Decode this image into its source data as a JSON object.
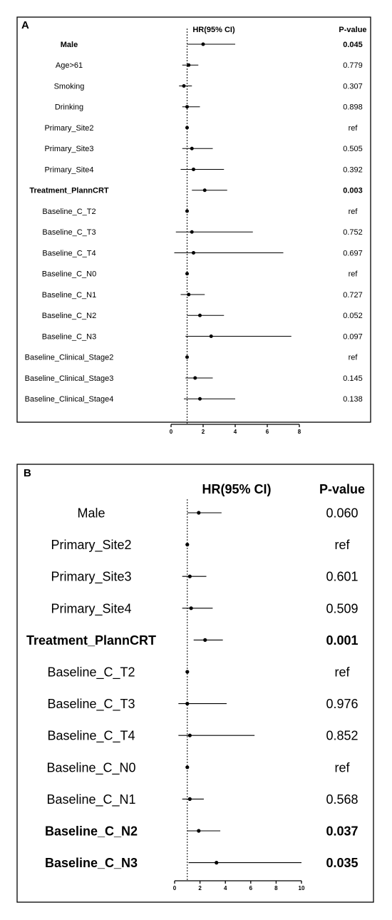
{
  "chart_data": [
    {
      "type": "forest",
      "panel_label": "A",
      "col_hr": "HR(95% CI)",
      "col_p": "P-value",
      "xlim": [
        0,
        8
      ],
      "xticks": [
        "0",
        "2",
        "4",
        "6",
        "8"
      ],
      "reference_line": 1,
      "rows": [
        {
          "label": "Male",
          "hr": 2.0,
          "lo": 1.0,
          "hi": 4.0,
          "p": "0.045",
          "bold": true
        },
        {
          "label": "Age>61",
          "hr": 1.1,
          "lo": 0.7,
          "hi": 1.7,
          "p": "0.779",
          "bold": false
        },
        {
          "label": "Smoking",
          "hr": 0.8,
          "lo": 0.5,
          "hi": 1.3,
          "p": "0.307",
          "bold": false
        },
        {
          "label": "Drinking",
          "hr": 1.0,
          "lo": 0.7,
          "hi": 1.8,
          "p": "0.898",
          "bold": false
        },
        {
          "label": "Primary_Site2",
          "hr": 1.0,
          "lo": 1.0,
          "hi": 1.0,
          "p": "ref",
          "bold": false
        },
        {
          "label": "Primary_Site3",
          "hr": 1.3,
          "lo": 0.7,
          "hi": 2.6,
          "p": "0.505",
          "bold": false
        },
        {
          "label": "Primary_Site4",
          "hr": 1.4,
          "lo": 0.6,
          "hi": 3.3,
          "p": "0.392",
          "bold": false
        },
        {
          "label": "Treatment_PlannCRT",
          "hr": 2.1,
          "lo": 1.3,
          "hi": 3.5,
          "p": "0.003",
          "bold": true
        },
        {
          "label": "Baseline_C_T2",
          "hr": 1.0,
          "lo": 1.0,
          "hi": 1.0,
          "p": "ref",
          "bold": false
        },
        {
          "label": "Baseline_C_T3",
          "hr": 1.3,
          "lo": 0.3,
          "hi": 5.1,
          "p": "0.752",
          "bold": false
        },
        {
          "label": "Baseline_C_T4",
          "hr": 1.4,
          "lo": 0.2,
          "hi": 7.0,
          "p": "0.697",
          "bold": false
        },
        {
          "label": "Baseline_C_N0",
          "hr": 1.0,
          "lo": 1.0,
          "hi": 1.0,
          "p": "ref",
          "bold": false
        },
        {
          "label": "Baseline_C_N1",
          "hr": 1.1,
          "lo": 0.6,
          "hi": 2.1,
          "p": "0.727",
          "bold": false
        },
        {
          "label": "Baseline_C_N2",
          "hr": 1.8,
          "lo": 1.0,
          "hi": 3.3,
          "p": "0.052",
          "bold": false
        },
        {
          "label": "Baseline_C_N3",
          "hr": 2.5,
          "lo": 0.9,
          "hi": 7.5,
          "p": "0.097",
          "bold": false
        },
        {
          "label": "Baseline_Clinical_Stage2",
          "hr": 1.0,
          "lo": 1.0,
          "hi": 1.0,
          "p": "ref",
          "bold": false
        },
        {
          "label": "Baseline_Clinical_Stage3",
          "hr": 1.5,
          "lo": 0.9,
          "hi": 2.6,
          "p": "0.145",
          "bold": false
        },
        {
          "label": "Baseline_Clinical_Stage4",
          "hr": 1.8,
          "lo": 0.8,
          "hi": 4.0,
          "p": "0.138",
          "bold": false
        }
      ]
    },
    {
      "type": "forest",
      "panel_label": "B",
      "col_hr": "HR(95% CI)",
      "col_p": "P-value",
      "xlim": [
        0,
        10
      ],
      "xticks": [
        "0",
        "2",
        "4",
        "6",
        "8",
        "10"
      ],
      "reference_line": 1,
      "rows": [
        {
          "label": "Male",
          "hr": 1.9,
          "lo": 1.0,
          "hi": 3.7,
          "p": "0.060",
          "bold": false
        },
        {
          "label": "Primary_Site2",
          "hr": 1.0,
          "lo": 1.0,
          "hi": 1.0,
          "p": "ref",
          "bold": false
        },
        {
          "label": "Primary_Site3",
          "hr": 1.2,
          "lo": 0.6,
          "hi": 2.5,
          "p": "0.601",
          "bold": false
        },
        {
          "label": "Primary_Site4",
          "hr": 1.3,
          "lo": 0.6,
          "hi": 3.0,
          "p": "0.509",
          "bold": false
        },
        {
          "label": "Treatment_PlannCRT",
          "hr": 2.4,
          "lo": 1.5,
          "hi": 3.8,
          "p": "0.001",
          "bold": true
        },
        {
          "label": "Baseline_C_T2",
          "hr": 1.0,
          "lo": 1.0,
          "hi": 1.0,
          "p": "ref",
          "bold": false
        },
        {
          "label": "Baseline_C_T3",
          "hr": 1.0,
          "lo": 0.3,
          "hi": 4.1,
          "p": "0.976",
          "bold": false
        },
        {
          "label": "Baseline_C_T4",
          "hr": 1.2,
          "lo": 0.3,
          "hi": 6.3,
          "p": "0.852",
          "bold": false
        },
        {
          "label": "Baseline_C_N0",
          "hr": 1.0,
          "lo": 1.0,
          "hi": 1.0,
          "p": "ref",
          "bold": false
        },
        {
          "label": "Baseline_C_N1",
          "hr": 1.2,
          "lo": 0.6,
          "hi": 2.3,
          "p": "0.568",
          "bold": false
        },
        {
          "label": "Baseline_C_N2",
          "hr": 1.9,
          "lo": 1.0,
          "hi": 3.6,
          "p": "0.037",
          "bold": true
        },
        {
          "label": "Baseline_C_N3",
          "hr": 3.3,
          "lo": 1.1,
          "hi": 10.0,
          "p": "0.035",
          "bold": true
        }
      ]
    }
  ]
}
